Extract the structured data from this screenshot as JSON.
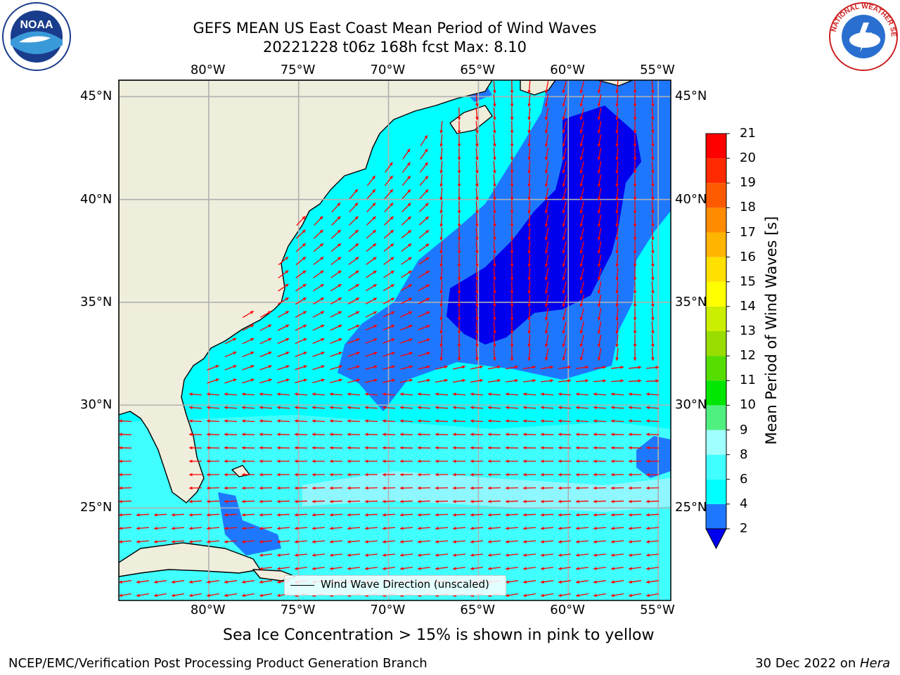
{
  "title": {
    "line1": "GEFS MEAN US East Coast Mean Period of Wind Waves",
    "line2": "20221228 t06z 168h fcst   Max: 8.10"
  },
  "map": {
    "lon_labels": [
      "80°W",
      "75°W",
      "70°W",
      "65°W",
      "60°W",
      "55°W"
    ],
    "lat_labels": [
      "45°N",
      "40°N",
      "35°N",
      "30°N",
      "25°N"
    ],
    "extent": {
      "lon_min": -85,
      "lon_max": -54.3,
      "lat_min": 20.5,
      "lat_max": 45.8
    },
    "legend_label": "Wind Wave Direction (unscaled)",
    "colors": {
      "land": "#efeddb",
      "coast": "#000000",
      "grid": "#b0b0b0",
      "arrow": "#ff0000"
    }
  },
  "colorbar": {
    "label": "Mean Period of Wind Waves [s]",
    "ticks": [
      "2",
      "4",
      "6",
      "8",
      "9",
      "10",
      "11",
      "12",
      "13",
      "14",
      "15",
      "16",
      "17",
      "18",
      "19",
      "20",
      "21"
    ],
    "colors": [
      "#0000ee",
      "#1e78ff",
      "#00ffff",
      "#40ffff",
      "#a0ffff",
      "#50f080",
      "#00e600",
      "#55dd00",
      "#99dd00",
      "#ccee00",
      "#ffff00",
      "#ffe000",
      "#ffb400",
      "#ff8c00",
      "#ff5a00",
      "#ff2a00",
      "#ff0000"
    ]
  },
  "caption": "Sea Ice Concentration > 15% is shown in pink to yellow",
  "footer": {
    "left": "NCEP/EMC/Verification Post Processing Product Generation Branch",
    "right_prefix": "30 Dec 2022 on ",
    "right_host": "Hera"
  },
  "logos": {
    "noaa": "NOAA",
    "nws": "NATIONAL WEATHER SERVICE"
  }
}
